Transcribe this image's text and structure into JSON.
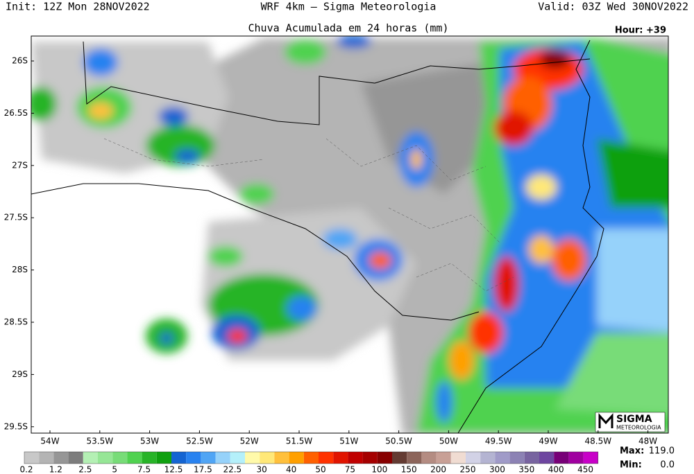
{
  "header": {
    "init": "Init: 12Z Mon 28NOV2022",
    "model": "WRF 4km — Sigma Meteorologia",
    "valid": "Valid: 03Z Wed 30NOV2022",
    "title": "Chuva Acumulada em 24 horas (mm)",
    "hour": "Hour: +39"
  },
  "map": {
    "lat_labels": [
      "26S",
      "26.5S",
      "27S",
      "27.5S",
      "28S",
      "28.5S",
      "29S",
      "29.5S"
    ],
    "lon_labels": [
      "54W",
      "53.5W",
      "53W",
      "52.5W",
      "52W",
      "51.5W",
      "51W",
      "50.5W",
      "50W",
      "49.5W",
      "49W",
      "48.5W",
      "48W"
    ]
  },
  "legend": {
    "labels": [
      "0.2",
      "1.2",
      "2.5",
      "5",
      "7.5",
      "12.5",
      "17.5",
      "22.5",
      "30",
      "40",
      "50",
      "75",
      "100",
      "150",
      "200",
      "250",
      "300",
      "350",
      "400",
      "450"
    ],
    "colors": [
      "#c8c8c8",
      "#b4b4b4",
      "#969696",
      "#7d7d7d",
      "#b4f0b4",
      "#96e696",
      "#78dc78",
      "#50d250",
      "#28b428",
      "#0fa00f",
      "#1464d2",
      "#2882f0",
      "#50a5f5",
      "#96d2fa",
      "#b4f0fa",
      "#fffaaa",
      "#ffe878",
      "#ffc03c",
      "#ffa000",
      "#ff6000",
      "#ff3200",
      "#e11400",
      "#c00000",
      "#a50000",
      "#870000",
      "#643b32",
      "#8c645a",
      "#b48c82",
      "#c8a096",
      "#f0dcd2",
      "#d2d2e6",
      "#b4b4d2",
      "#a09bc8",
      "#8c82b4",
      "#7864a0",
      "#6e46a0",
      "#780078",
      "#a000a0",
      "#c800c8"
    ]
  },
  "stats": {
    "max_label": "Max:",
    "max": "119.0",
    "min_label": "Min:",
    "min": "0.0"
  },
  "logo": {
    "name": "SIGMA",
    "sub": "METEOROLOGIA"
  }
}
